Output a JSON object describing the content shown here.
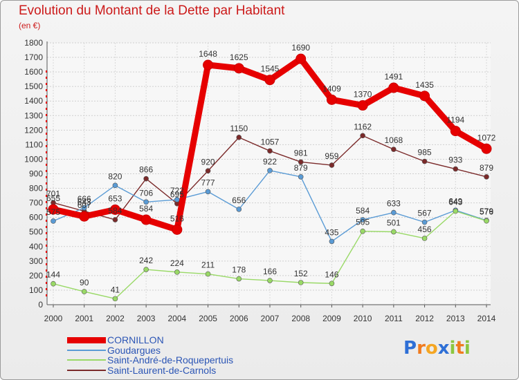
{
  "title": "Evolution du Montant de la Dette par Habitant",
  "unit_label": "(en €)",
  "logo": {
    "text": "Proxiti",
    "letters": [
      "P",
      "r",
      "o",
      "x",
      "i",
      "t",
      "i"
    ],
    "colors": [
      "#2e6fd6",
      "#f07b1e",
      "#f5a623",
      "#2e6fd6",
      "#8cc63f",
      "#f07b1e",
      "#8cc63f"
    ]
  },
  "chart_data": {
    "type": "line",
    "title": "Evolution du Montant de la Dette par Habitant",
    "ylabel": "(en €)",
    "xlabel": "",
    "x": [
      2000,
      2001,
      2002,
      2003,
      2004,
      2005,
      2006,
      2007,
      2008,
      2009,
      2010,
      2011,
      2012,
      2013,
      2014
    ],
    "ylim": [
      0,
      1800
    ],
    "yticks": [
      0,
      100,
      200,
      300,
      400,
      500,
      600,
      700,
      800,
      900,
      1000,
      1100,
      1200,
      1300,
      1400,
      1500,
      1600,
      1700,
      1800
    ],
    "grid": true,
    "legend_position": "bottom-left",
    "series": [
      {
        "name": "CORNILLON",
        "color": "#e60000",
        "values": [
          655,
          607,
          653,
          584,
          516,
          1648,
          1625,
          1545,
          1690,
          1409,
          1370,
          1491,
          1435,
          1194,
          1072
        ],
        "labels": [
          "655",
          "607",
          "653",
          "584",
          "516",
          "1648",
          "1625",
          "1545",
          "1690",
          "1409",
          "1370",
          "1491",
          "1435",
          "1194",
          "1072"
        ]
      },
      {
        "name": "Goudargues",
        "color": "#5a9bd5",
        "values": [
          575,
          666,
          820,
          706,
          722,
          777,
          656,
          922,
          879,
          435,
          584,
          633,
          567,
          649,
          579
        ],
        "labels": [
          "575",
          "666",
          "820",
          "706",
          "722",
          "777",
          "656",
          "922",
          "879",
          "435",
          "584",
          "633",
          "567",
          "649",
          "579"
        ]
      },
      {
        "name": "Saint-André-de-Roquepertuis",
        "color": "#99d966",
        "values": [
          144,
          90,
          41,
          242,
          224,
          211,
          178,
          166,
          152,
          146,
          505,
          501,
          456,
          643,
          576
        ],
        "labels": [
          "144",
          "90",
          "41",
          "242",
          "224",
          "211",
          "178",
          "166",
          "152",
          "146",
          "505",
          "501",
          "456",
          "643",
          "576"
        ]
      },
      {
        "name": "Saint-Laurent-de-Carnols",
        "color": "#7b2a2a",
        "values": [
          701,
          643,
          584,
          866,
          695,
          920,
          1150,
          1057,
          981,
          959,
          1162,
          1068,
          985,
          933,
          879
        ],
        "labels": [
          "701",
          "643",
          "584",
          "866",
          "695",
          "920",
          "1150",
          "1057",
          "981",
          "959",
          "1162",
          "1068",
          "985",
          "933",
          "879"
        ]
      }
    ]
  }
}
